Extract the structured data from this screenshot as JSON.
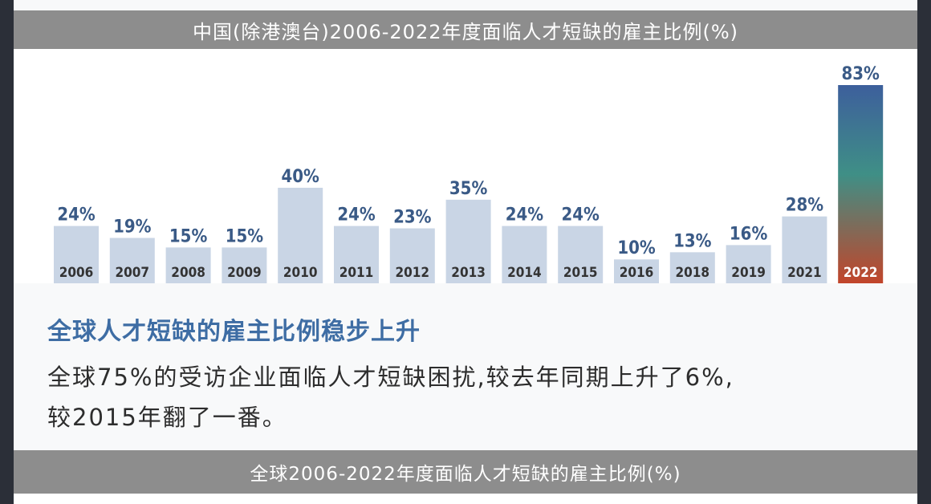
{
  "top_banner": "中国(除港澳台)2006-2022年度面临人才短缺的雇主比例(%)",
  "heading": "全球人才短缺的雇主比例稳步上升",
  "body_line1": "全球75%的受访企业面临人才短缺困扰,较去年同期上升了6%,",
  "body_line2": "较2015年翻了一番。",
  "bottom_banner": "全球2006-2022年度面临人才短缺的雇主比例(%)",
  "colors": {
    "bar": "#c9d5e5",
    "label": "#3a5a86",
    "year": "#333333",
    "highlight_year": "#ffffff",
    "highlight_top": "#3d5f9c",
    "highlight_mid": "#3f8f86",
    "highlight_bottom": "#c2452a"
  },
  "chart_data": {
    "type": "bar",
    "title": "中国(除港澳台)2006-2022年度面临人才短缺的雇主比例(%)",
    "categories": [
      "2006",
      "2007",
      "2008",
      "2009",
      "2010",
      "2011",
      "2012",
      "2013",
      "2014",
      "2015",
      "2016",
      "2018",
      "2019",
      "2021",
      "2022"
    ],
    "values": [
      24,
      19,
      15,
      15,
      40,
      24,
      23,
      35,
      24,
      24,
      10,
      13,
      16,
      28,
      83
    ],
    "labels": [
      "24%",
      "19%",
      "15%",
      "15%",
      "40%",
      "24%",
      "23%",
      "35%",
      "24%",
      "24%",
      "10%",
      "13%",
      "16%",
      "28%",
      "83%"
    ],
    "highlight_index": 14,
    "ylim": [
      0,
      83
    ],
    "grid": false
  }
}
